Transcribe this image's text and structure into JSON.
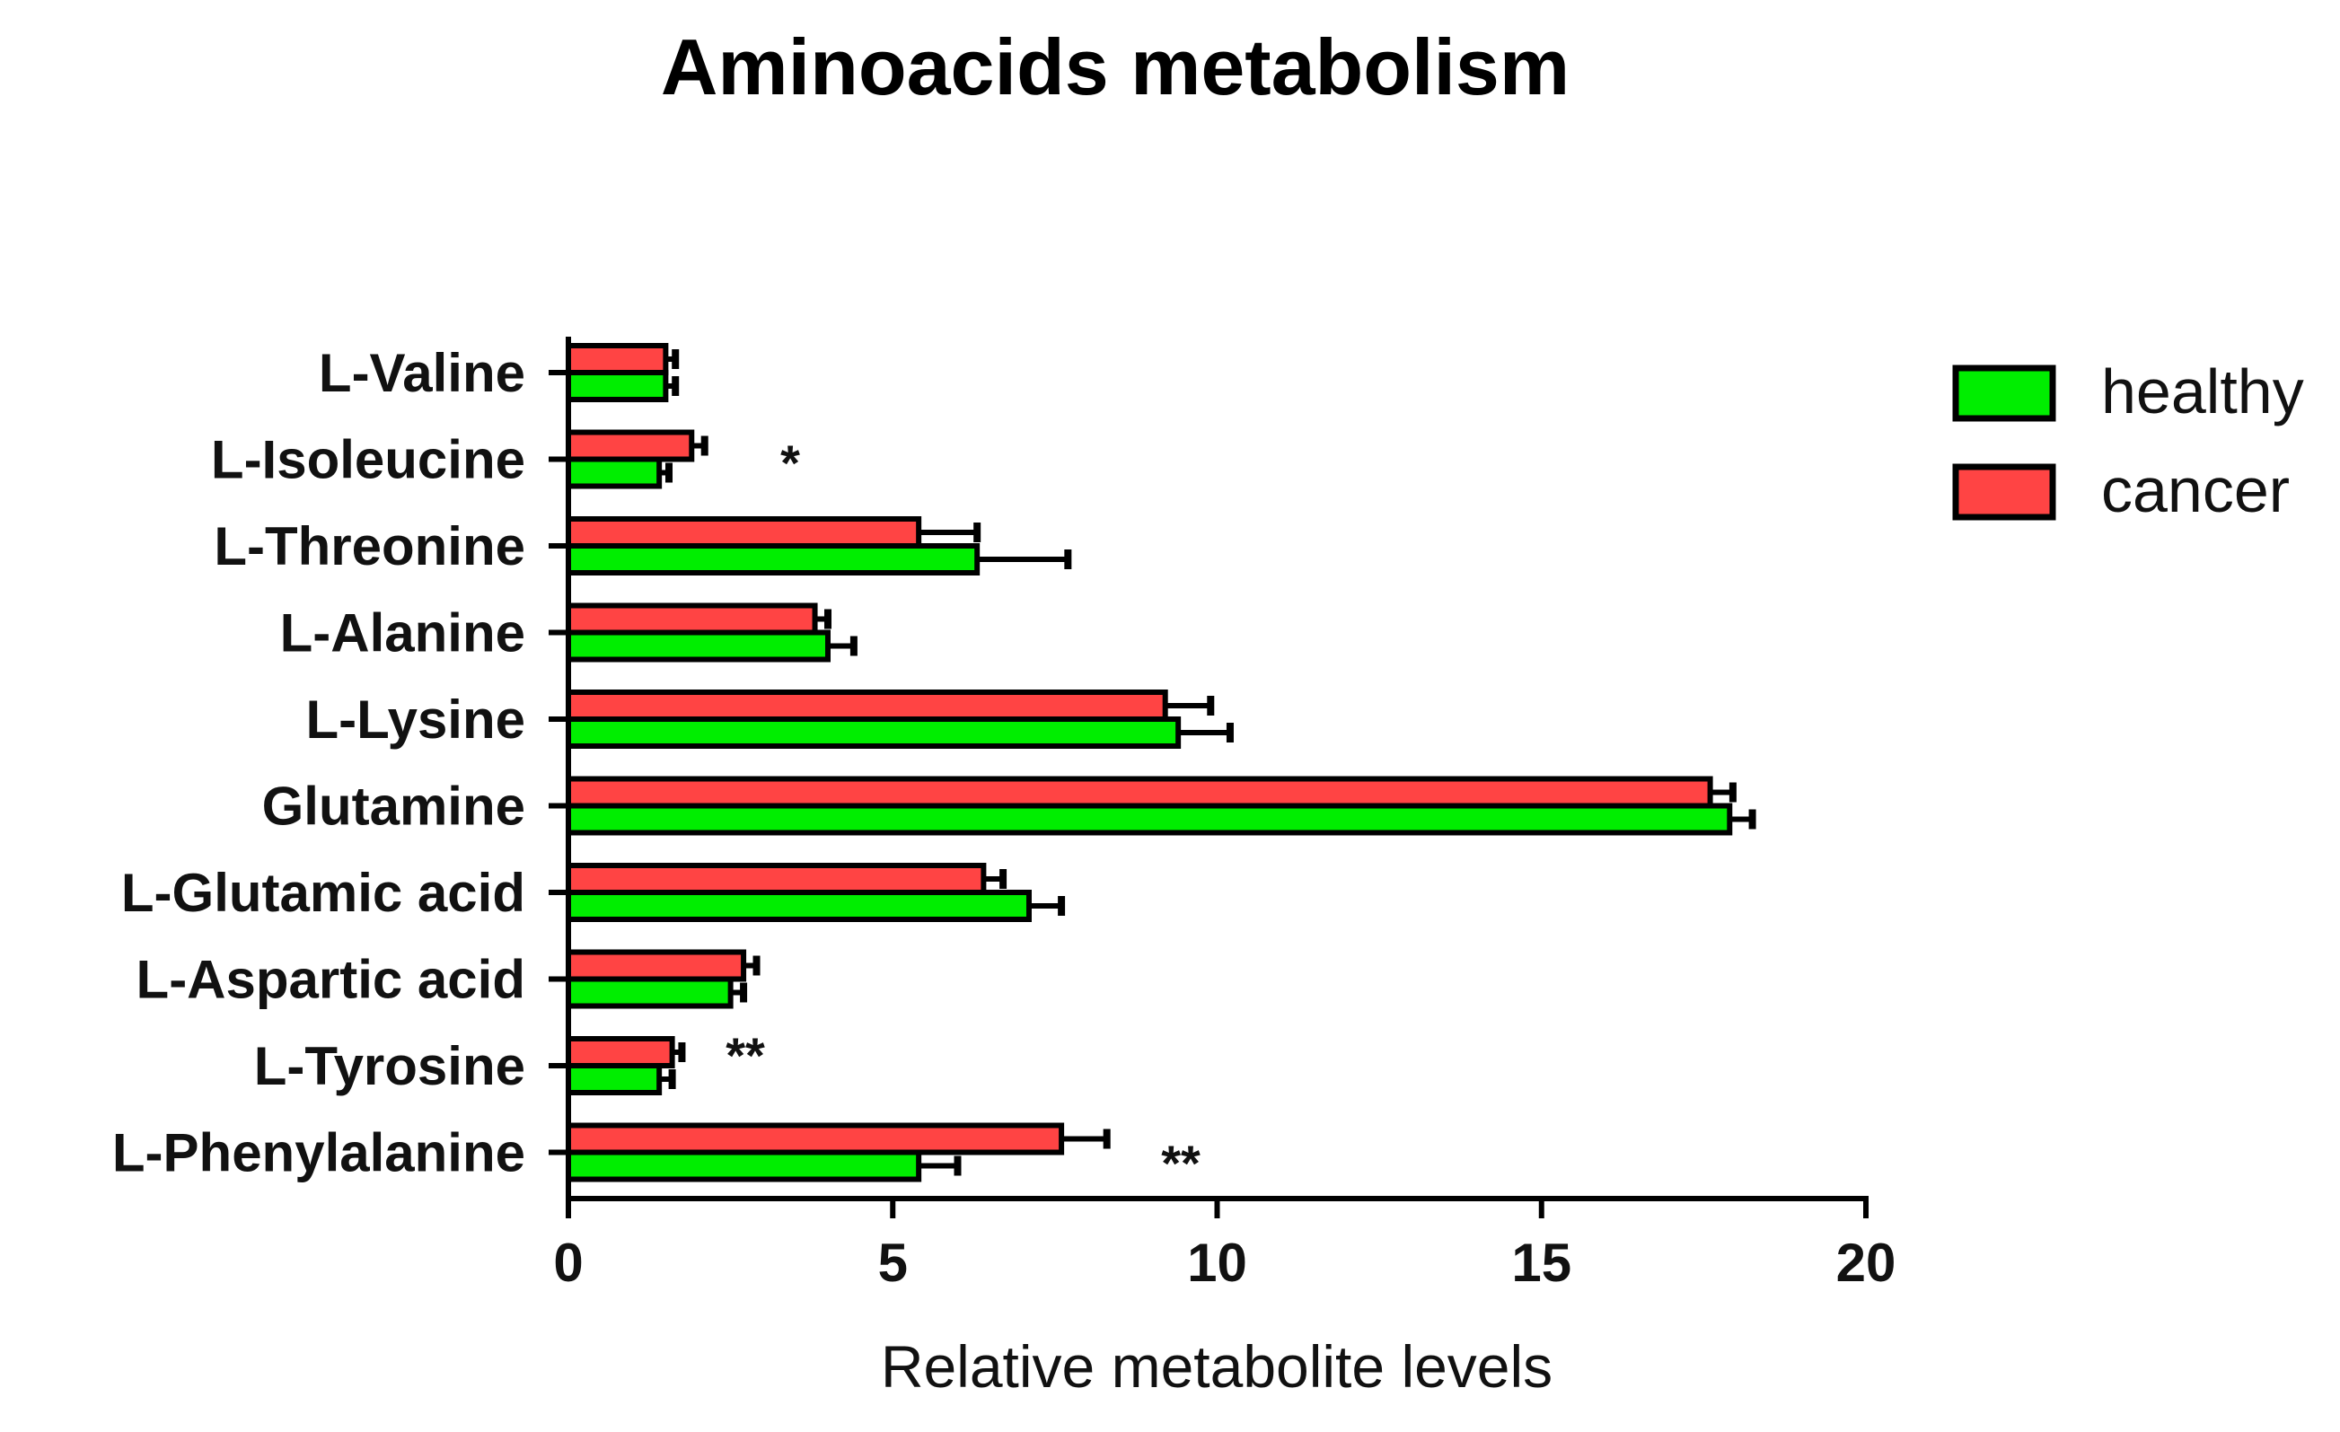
{
  "chart_data": {
    "type": "bar",
    "orientation": "horizontal",
    "title": "Aminoacids metabolism",
    "xlabel": "Relative metabolite levels",
    "ylabel": "",
    "xlim": [
      0,
      20
    ],
    "xticks": [
      "0",
      "5",
      "10",
      "15",
      "20"
    ],
    "categories": [
      "L-Valine",
      "L-Isoleucine",
      "L-Threonine",
      "L-Alanine",
      "L-Lysine",
      "Glutamine",
      "L-Glutamic acid",
      "L-Aspartic acid",
      "L-Tyrosine",
      "L-Phenylalanine"
    ],
    "series": [
      {
        "name": "healthy",
        "color": "#00ee00",
        "values": [
          1.5,
          1.4,
          6.3,
          4.0,
          9.4,
          17.9,
          7.1,
          2.5,
          1.4,
          5.4
        ],
        "errors": [
          0.15,
          0.15,
          1.4,
          0.4,
          0.8,
          0.35,
          0.5,
          0.2,
          0.2,
          0.6
        ]
      },
      {
        "name": "cancer",
        "color": "#ff4444",
        "values": [
          1.5,
          1.9,
          5.4,
          3.8,
          9.2,
          17.6,
          6.4,
          2.7,
          1.6,
          7.6
        ],
        "errors": [
          0.15,
          0.2,
          0.9,
          0.2,
          0.7,
          0.35,
          0.3,
          0.2,
          0.15,
          0.7
        ]
      }
    ],
    "significance": [
      {
        "category": "L-Isoleucine",
        "label": "*"
      },
      {
        "category": "L-Tyrosine",
        "label": "**"
      },
      {
        "category": "L-Phenylalanine",
        "label": "**"
      }
    ],
    "legend_position": "top-right"
  }
}
